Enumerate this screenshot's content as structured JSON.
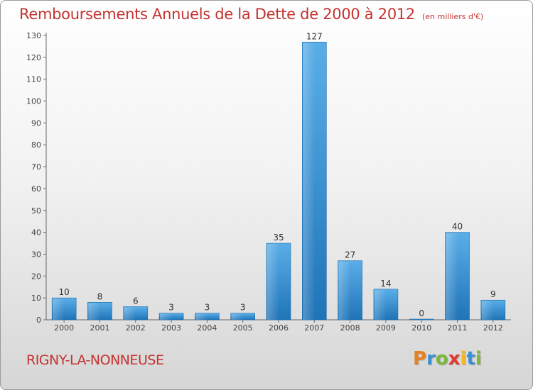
{
  "header": {
    "title": "Remboursements Annuels de la Dette de 2000 à 2012",
    "unit": "(en milliers d'€)"
  },
  "footer": {
    "commune": "RIGNY-LA-NONNEUSE",
    "logo": {
      "p": "P",
      "r": "r",
      "o": "o",
      "x": "x",
      "i1": "i",
      "t": "t",
      "i2": "i"
    }
  },
  "colors": {
    "title": "#c4322f",
    "bar_light": "#5aaee8",
    "bar_dark": "#1f74b8",
    "axis": "#555555"
  },
  "chart_data": {
    "type": "bar",
    "title": "Remboursements Annuels de la Dette de 2000 à 2012",
    "xlabel": "",
    "ylabel": "",
    "categories": [
      "2000",
      "2001",
      "2002",
      "2003",
      "2004",
      "2005",
      "2006",
      "2007",
      "2008",
      "2009",
      "2010",
      "2011",
      "2012"
    ],
    "values": [
      10,
      8,
      6,
      3,
      3,
      3,
      35,
      127,
      27,
      14,
      0,
      40,
      9
    ],
    "ylim": [
      0,
      130
    ],
    "yticks": [
      0,
      10,
      20,
      30,
      40,
      50,
      60,
      70,
      80,
      90,
      100,
      110,
      120,
      130
    ],
    "grid": false,
    "legend": "none"
  }
}
